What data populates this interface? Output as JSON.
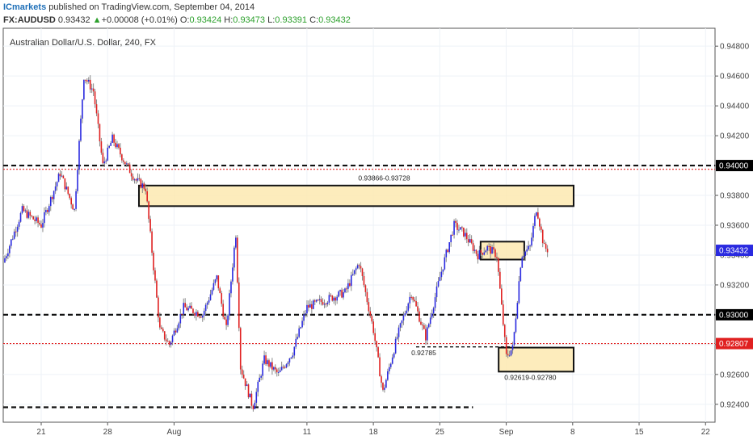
{
  "header": {
    "brand": "ICmarkets",
    "published": " published on TradingView.com, September 04, 2014",
    "symbol": "FX:AUDUSD",
    "last": "0.93432",
    "change_arrow": "▲",
    "change": "+0.00008 (+0.01%)",
    "o_label": "O:",
    "o_value": "0.93424",
    "h_label": "H:",
    "h_value": "0.93473",
    "l_label": "L:",
    "l_value": "0.93391",
    "c_label": "C:",
    "c_value": "0.93432"
  },
  "chart_data": {
    "type": "candlestick",
    "title": "Australian Dollar/U.S. Dollar, 240, FX",
    "ylim": [
      0.9228,
      0.9492
    ],
    "y_ticks": [
      "0.94800",
      "0.94600",
      "0.94400",
      "0.94200",
      "0.94000",
      "0.93800",
      "0.93600",
      "0.93400",
      "0.93200",
      "0.93000",
      "0.92800",
      "0.92600",
      "0.92400"
    ],
    "x_ticks": [
      "21",
      "28",
      "Aug",
      "11",
      "18",
      "25",
      "Sep",
      "8",
      "15",
      "22"
    ],
    "x_tick_pos": [
      4,
      11,
      18,
      32,
      39,
      46,
      53,
      60,
      67,
      74
    ],
    "x_range": [
      0,
      75
    ],
    "colors": {
      "up": "#2a2ae0",
      "down": "#e02020",
      "wick": "#888888"
    },
    "price_labels": [
      {
        "text": "0.94000",
        "value": 0.94,
        "color": "#000000"
      },
      {
        "text": "0.93432",
        "value": 0.93432,
        "color": "#2a2ae0"
      },
      {
        "text": "0.93000",
        "value": 0.93,
        "color": "#000000"
      },
      {
        "text": "0.92807",
        "value": 0.92807,
        "color": "#e02020"
      }
    ],
    "levels": [
      {
        "value": 0.94,
        "style": "black-dashed",
        "from": 0,
        "to": 75
      },
      {
        "value": 0.93975,
        "style": "red-dotted",
        "from": 0,
        "to": 75
      },
      {
        "value": 0.93,
        "style": "black-dashed",
        "from": 0,
        "to": 75
      },
      {
        "value": 0.92807,
        "style": "red-dotted",
        "from": 0,
        "to": 75
      },
      {
        "value": 0.9238,
        "style": "black-dashed",
        "from": 0,
        "to": 49.5
      },
      {
        "value": 0.92785,
        "style": "black-dashed-short",
        "from": 43.5,
        "to": 53.5
      }
    ],
    "zones": [
      {
        "x0": 14.3,
        "x1": 60.1,
        "y0": 0.93728,
        "y1": 0.93866,
        "label": "0.93866-0.93728"
      },
      {
        "x0": 50.3,
        "x1": 54.9,
        "y0": 0.9337,
        "y1": 0.9349,
        "label": ""
      },
      {
        "x0": 52.2,
        "x1": 60.1,
        "y0": 0.92619,
        "y1": 0.9278,
        "label": "0.92619-0.92780"
      }
    ],
    "annotations": [
      {
        "text": "0.93866-0.93728",
        "x": 37.4,
        "y": 0.939
      },
      {
        "text": "0.92785",
        "x": 43.0,
        "y": 0.9273
      },
      {
        "text": "0.92619-0.92780",
        "x": 52.8,
        "y": 0.92565
      }
    ],
    "anchors": [
      [
        0,
        0.9335
      ],
      [
        2,
        0.937
      ],
      [
        4,
        0.936
      ],
      [
        6,
        0.9395
      ],
      [
        7.5,
        0.937
      ],
      [
        8.5,
        0.946
      ],
      [
        9.5,
        0.945
      ],
      [
        10.5,
        0.94
      ],
      [
        11.5,
        0.9418
      ],
      [
        13,
        0.94
      ],
      [
        14,
        0.939
      ],
      [
        15,
        0.9385
      ],
      [
        16.5,
        0.929
      ],
      [
        17.5,
        0.928
      ],
      [
        19,
        0.9305
      ],
      [
        21,
        0.93
      ],
      [
        22.5,
        0.9325
      ],
      [
        23.5,
        0.929
      ],
      [
        24.5,
        0.9355
      ],
      [
        25,
        0.9265
      ],
      [
        26.3,
        0.9238
      ],
      [
        27.5,
        0.927
      ],
      [
        29,
        0.926
      ],
      [
        30.5,
        0.9275
      ],
      [
        32,
        0.9305
      ],
      [
        34,
        0.931
      ],
      [
        36,
        0.9315
      ],
      [
        37.5,
        0.9335
      ],
      [
        39,
        0.929
      ],
      [
        40,
        0.9248
      ],
      [
        41.5,
        0.9285
      ],
      [
        43,
        0.9315
      ],
      [
        44.5,
        0.9285
      ],
      [
        46,
        0.9325
      ],
      [
        47.5,
        0.936
      ],
      [
        48.5,
        0.9355
      ],
      [
        50,
        0.934
      ],
      [
        51,
        0.9345
      ],
      [
        52,
        0.934
      ],
      [
        53,
        0.9272
      ],
      [
        53.7,
        0.9278
      ],
      [
        54.6,
        0.934
      ],
      [
        55.5,
        0.9345
      ],
      [
        56.2,
        0.9372
      ],
      [
        57,
        0.9345
      ],
      [
        57.5,
        0.93432
      ]
    ]
  }
}
